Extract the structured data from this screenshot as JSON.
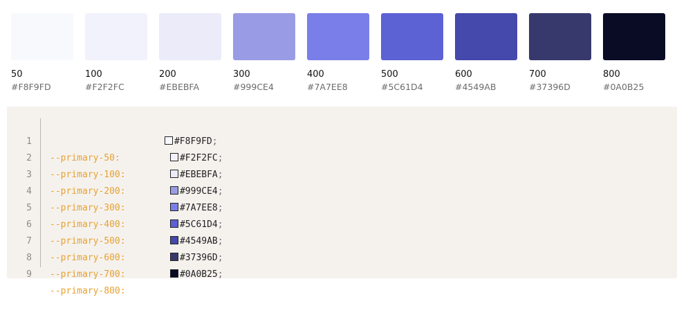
{
  "palette": [
    {
      "label": "50",
      "hex": "#F8F9FD",
      "color": "#F8F9FD"
    },
    {
      "label": "100",
      "hex": "#F2F2FC",
      "color": "#F2F2FC"
    },
    {
      "label": "200",
      "hex": "#EBEBFA",
      "color": "#EBEBFA"
    },
    {
      "label": "300",
      "hex": "#999CE4",
      "color": "#999CE4"
    },
    {
      "label": "400",
      "hex": "#7A7EE8",
      "color": "#7A7EE8"
    },
    {
      "label": "500",
      "hex": "#5C61D4",
      "color": "#5C61D4"
    },
    {
      "label": "600",
      "hex": "#4549AB",
      "color": "#4549AB"
    },
    {
      "label": "700",
      "hex": "#37396D",
      "color": "#37396D"
    },
    {
      "label": "800",
      "hex": "#0A0B25",
      "color": "#0A0B25"
    }
  ],
  "code": {
    "lines": [
      {
        "num": "1",
        "prop": "--primary-50:",
        "value": "#F8F9FD",
        "semi": ";"
      },
      {
        "num": "2",
        "prop": "--primary-100:",
        "value": "#F2F2FC",
        "semi": ";"
      },
      {
        "num": "3",
        "prop": "--primary-200:",
        "value": "#EBEBFA",
        "semi": ";"
      },
      {
        "num": "4",
        "prop": "--primary-300:",
        "value": "#999CE4",
        "semi": ";"
      },
      {
        "num": "5",
        "prop": "--primary-400:",
        "value": "#7A7EE8",
        "semi": ";"
      },
      {
        "num": "6",
        "prop": "--primary-500:",
        "value": "#5C61D4",
        "semi": ";"
      },
      {
        "num": "7",
        "prop": "--primary-600:",
        "value": "#4549AB",
        "semi": ";"
      },
      {
        "num": "8",
        "prop": "--primary-700:",
        "value": "#37396D",
        "semi": ";"
      },
      {
        "num": "9",
        "prop": "--primary-800:",
        "value": "#0A0B25",
        "semi": ";"
      }
    ]
  }
}
